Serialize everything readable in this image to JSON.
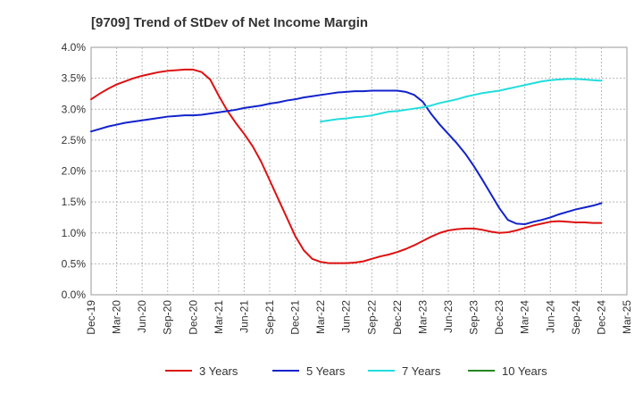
{
  "chart_data": {
    "type": "line",
    "title": "[9709]  Trend of StDev of Net Income Margin",
    "xlabel": "",
    "ylabel": "",
    "x_categories": [
      "Dec-19",
      "Mar-20",
      "Jun-20",
      "Sep-20",
      "Dec-20",
      "Mar-21",
      "Jun-21",
      "Sep-21",
      "Dec-21",
      "Mar-22",
      "Jun-22",
      "Sep-22",
      "Dec-22",
      "Mar-23",
      "Jun-23",
      "Sep-23",
      "Dec-23",
      "Mar-24",
      "Jun-24",
      "Sep-24",
      "Dec-24",
      "Mar-25"
    ],
    "ylim": [
      0,
      0.04
    ],
    "y_ticks": [
      {
        "value": 0.0,
        "label": "0.0%"
      },
      {
        "value": 0.005,
        "label": "0.5%"
      },
      {
        "value": 0.01,
        "label": "1.0%"
      },
      {
        "value": 0.015,
        "label": "1.5%"
      },
      {
        "value": 0.02,
        "label": "2.0%"
      },
      {
        "value": 0.025,
        "label": "2.5%"
      },
      {
        "value": 0.03,
        "label": "3.0%"
      },
      {
        "value": 0.035,
        "label": "3.5%"
      },
      {
        "value": 0.04,
        "label": "4.0%"
      }
    ],
    "grid": true,
    "legend_position": "bottom",
    "series": [
      {
        "name": "3 Years",
        "color": "#dd1111",
        "points": [
          [
            "Dec-19",
            0.0316
          ],
          [
            "Jan-20",
            0.0325
          ],
          [
            "Feb-20",
            0.0333
          ],
          [
            "Mar-20",
            0.034
          ],
          [
            "Apr-20",
            0.0345
          ],
          [
            "May-20",
            0.035
          ],
          [
            "Jun-20",
            0.0354
          ],
          [
            "Jul-20",
            0.0357
          ],
          [
            "Aug-20",
            0.036
          ],
          [
            "Sep-20",
            0.0362
          ],
          [
            "Oct-20",
            0.0363
          ],
          [
            "Nov-20",
            0.0364
          ],
          [
            "Dec-20",
            0.0364
          ],
          [
            "Jan-21",
            0.036
          ],
          [
            "Feb-21",
            0.0348
          ],
          [
            "Mar-21",
            0.0322
          ],
          [
            "Apr-21",
            0.0298
          ],
          [
            "May-21",
            0.0278
          ],
          [
            "Jun-21",
            0.026
          ],
          [
            "Jul-21",
            0.024
          ],
          [
            "Aug-21",
            0.0215
          ],
          [
            "Sep-21",
            0.0185
          ],
          [
            "Oct-21",
            0.0155
          ],
          [
            "Nov-21",
            0.0125
          ],
          [
            "Dec-21",
            0.0095
          ],
          [
            "Jan-22",
            0.0072
          ],
          [
            "Feb-22",
            0.0058
          ],
          [
            "Mar-22",
            0.0053
          ],
          [
            "Apr-22",
            0.0051
          ],
          [
            "May-22",
            0.0051
          ],
          [
            "Jun-22",
            0.0051
          ],
          [
            "Jul-22",
            0.0052
          ],
          [
            "Aug-22",
            0.0054
          ],
          [
            "Sep-22",
            0.0058
          ],
          [
            "Oct-22",
            0.0062
          ],
          [
            "Nov-22",
            0.0065
          ],
          [
            "Dec-22",
            0.0069
          ],
          [
            "Jan-23",
            0.0074
          ],
          [
            "Feb-23",
            0.008
          ],
          [
            "Mar-23",
            0.0087
          ],
          [
            "Apr-23",
            0.0094
          ],
          [
            "May-23",
            0.01
          ],
          [
            "Jun-23",
            0.0104
          ],
          [
            "Jul-23",
            0.0106
          ],
          [
            "Aug-23",
            0.0107
          ],
          [
            "Sep-23",
            0.0107
          ],
          [
            "Oct-23",
            0.0105
          ],
          [
            "Nov-23",
            0.0102
          ],
          [
            "Dec-23",
            0.01
          ],
          [
            "Jan-24",
            0.0101
          ],
          [
            "Feb-24",
            0.0104
          ],
          [
            "Mar-24",
            0.0108
          ],
          [
            "Apr-24",
            0.0112
          ],
          [
            "May-24",
            0.0115
          ],
          [
            "Jun-24",
            0.0118
          ],
          [
            "Jul-24",
            0.0119
          ],
          [
            "Aug-24",
            0.0118
          ],
          [
            "Sep-24",
            0.0117
          ],
          [
            "Oct-24",
            0.0117
          ],
          [
            "Nov-24",
            0.0116
          ],
          [
            "Dec-24",
            0.0116
          ]
        ]
      },
      {
        "name": "5 Years",
        "color": "#1122cc",
        "points": [
          [
            "Dec-19",
            0.0264
          ],
          [
            "Jan-20",
            0.0268
          ],
          [
            "Feb-20",
            0.0272
          ],
          [
            "Mar-20",
            0.0275
          ],
          [
            "Apr-20",
            0.0278
          ],
          [
            "May-20",
            0.028
          ],
          [
            "Jun-20",
            0.0282
          ],
          [
            "Jul-20",
            0.0284
          ],
          [
            "Aug-20",
            0.0286
          ],
          [
            "Sep-20",
            0.0288
          ],
          [
            "Oct-20",
            0.0289
          ],
          [
            "Nov-20",
            0.029
          ],
          [
            "Dec-20",
            0.029
          ],
          [
            "Jan-21",
            0.0291
          ],
          [
            "Feb-21",
            0.0293
          ],
          [
            "Mar-21",
            0.0295
          ],
          [
            "Apr-21",
            0.0297
          ],
          [
            "May-21",
            0.0299
          ],
          [
            "Jun-21",
            0.0302
          ],
          [
            "Jul-21",
            0.0304
          ],
          [
            "Aug-21",
            0.0306
          ],
          [
            "Sep-21",
            0.0309
          ],
          [
            "Oct-21",
            0.0311
          ],
          [
            "Nov-21",
            0.0314
          ],
          [
            "Dec-21",
            0.0316
          ],
          [
            "Jan-22",
            0.0319
          ],
          [
            "Feb-22",
            0.0321
          ],
          [
            "Mar-22",
            0.0323
          ],
          [
            "Apr-22",
            0.0325
          ],
          [
            "May-22",
            0.0327
          ],
          [
            "Jun-22",
            0.0328
          ],
          [
            "Jul-22",
            0.0329
          ],
          [
            "Aug-22",
            0.0329
          ],
          [
            "Sep-22",
            0.033
          ],
          [
            "Oct-22",
            0.033
          ],
          [
            "Nov-22",
            0.033
          ],
          [
            "Dec-22",
            0.033
          ],
          [
            "Jan-23",
            0.0328
          ],
          [
            "Feb-23",
            0.0323
          ],
          [
            "Mar-23",
            0.0312
          ],
          [
            "Apr-23",
            0.0292
          ],
          [
            "May-23",
            0.0275
          ],
          [
            "Jun-23",
            0.026
          ],
          [
            "Jul-23",
            0.0245
          ],
          [
            "Aug-23",
            0.0228
          ],
          [
            "Sep-23",
            0.0208
          ],
          [
            "Oct-23",
            0.0186
          ],
          [
            "Nov-23",
            0.0163
          ],
          [
            "Dec-23",
            0.014
          ],
          [
            "Jan-24",
            0.0121
          ],
          [
            "Feb-24",
            0.0115
          ],
          [
            "Mar-24",
            0.0114
          ],
          [
            "Apr-24",
            0.0118
          ],
          [
            "May-24",
            0.0121
          ],
          [
            "Jun-24",
            0.0125
          ],
          [
            "Jul-24",
            0.013
          ],
          [
            "Aug-24",
            0.0134
          ],
          [
            "Sep-24",
            0.0138
          ],
          [
            "Oct-24",
            0.0141
          ],
          [
            "Nov-24",
            0.0144
          ],
          [
            "Dec-24",
            0.0148
          ]
        ]
      },
      {
        "name": "7 Years",
        "color": "#22dddd",
        "points": [
          [
            "Mar-22",
            0.028
          ],
          [
            "Apr-22",
            0.0282
          ],
          [
            "May-22",
            0.0284
          ],
          [
            "Jun-22",
            0.0285
          ],
          [
            "Jul-22",
            0.0287
          ],
          [
            "Aug-22",
            0.0288
          ],
          [
            "Sep-22",
            0.029
          ],
          [
            "Oct-22",
            0.0293
          ],
          [
            "Nov-22",
            0.0296
          ],
          [
            "Dec-22",
            0.0297
          ],
          [
            "Jan-23",
            0.0299
          ],
          [
            "Feb-23",
            0.0301
          ],
          [
            "Mar-23",
            0.0303
          ],
          [
            "Apr-23",
            0.0306
          ],
          [
            "May-23",
            0.031
          ],
          [
            "Jun-23",
            0.0313
          ],
          [
            "Jul-23",
            0.0316
          ],
          [
            "Aug-23",
            0.032
          ],
          [
            "Sep-23",
            0.0323
          ],
          [
            "Oct-23",
            0.0326
          ],
          [
            "Nov-23",
            0.0328
          ],
          [
            "Dec-23",
            0.033
          ],
          [
            "Jan-24",
            0.0333
          ],
          [
            "Feb-24",
            0.0336
          ],
          [
            "Mar-24",
            0.0339
          ],
          [
            "Apr-24",
            0.0342
          ],
          [
            "May-24",
            0.0345
          ],
          [
            "Jun-24",
            0.0347
          ],
          [
            "Jul-24",
            0.0348
          ],
          [
            "Aug-24",
            0.0349
          ],
          [
            "Sep-24",
            0.0349
          ],
          [
            "Oct-24",
            0.0348
          ],
          [
            "Nov-24",
            0.0347
          ],
          [
            "Dec-24",
            0.0346
          ]
        ]
      },
      {
        "name": "10 Years",
        "color": "#228822",
        "points": []
      }
    ]
  }
}
